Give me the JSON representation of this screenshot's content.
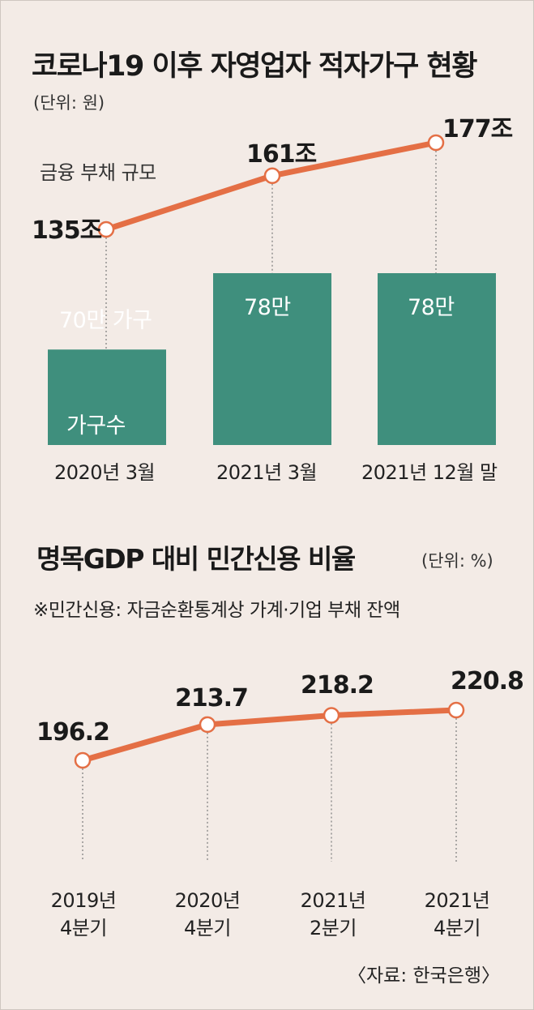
{
  "chart_data": [
    {
      "type": "bar",
      "title": "코로나19 이후 자영업자 적자가구 현황",
      "unit": "(단위: 원)",
      "categories": [
        "2020년 3월",
        "2021년 3월",
        "2021년 12월 말"
      ],
      "series": [
        {
          "name": "가구수",
          "values": [
            70,
            78,
            78
          ],
          "labels": [
            "70만 가구",
            "78만",
            "78만"
          ]
        },
        {
          "name": "금융 부채 규모",
          "type": "line",
          "values": [
            135,
            161,
            177
          ],
          "labels": [
            "135조",
            "161조",
            "177조"
          ]
        }
      ]
    },
    {
      "type": "line",
      "title": "명목GDP 대비 민간신용 비율",
      "unit": "(단위: %)",
      "note": "※민간신용: 자금순환통계상 가계·기업 부채 잔액",
      "categories": [
        [
          "2019년",
          "4분기"
        ],
        [
          "2020년",
          "4분기"
        ],
        [
          "2021년",
          "2분기"
        ],
        [
          "2021년",
          "4분기"
        ]
      ],
      "values": [
        196.2,
        213.7,
        218.2,
        220.8
      ],
      "labels": [
        "196.2",
        "213.7",
        "218.2",
        "220.8"
      ]
    }
  ],
  "source": "〈자료: 한국은행〉",
  "colors": {
    "background": "#f3ebe6",
    "bar": "#3f8f7d",
    "line": "#e46f45",
    "marker_fill": "#ffffff",
    "text": "#1a1a1a"
  }
}
